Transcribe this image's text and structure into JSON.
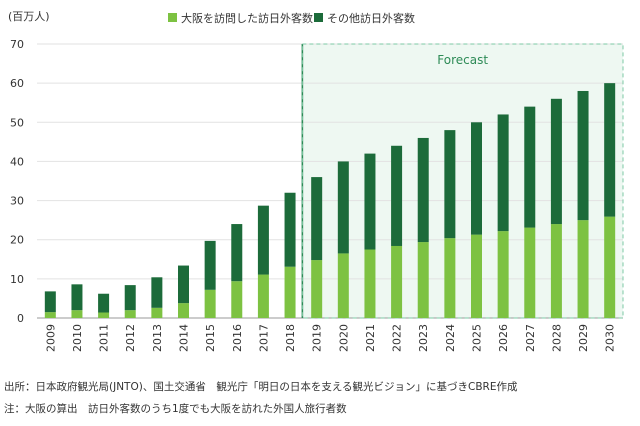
{
  "chart_data": {
    "type": "bar",
    "stacked": true,
    "unit_label": "(百万人)",
    "categories": [
      "2009",
      "2010",
      "2011",
      "2012",
      "2013",
      "2014",
      "2015",
      "2016",
      "2017",
      "2018",
      "2019",
      "2020",
      "2021",
      "2022",
      "2023",
      "2024",
      "2025",
      "2026",
      "2027",
      "2028",
      "2029",
      "2030"
    ],
    "series": [
      {
        "name": "大阪を訪問した訪日外客数",
        "color": "#7dc242",
        "values": [
          1.5,
          2.0,
          1.4,
          2.0,
          2.6,
          3.8,
          7.2,
          9.4,
          11.1,
          13.1,
          14.8,
          16.5,
          17.5,
          18.4,
          19.4,
          20.4,
          21.3,
          22.2,
          23.1,
          24.0,
          25.0,
          25.9
        ]
      },
      {
        "name": "その他訪日外客数",
        "color": "#1c6b3a",
        "values": [
          5.3,
          6.6,
          4.8,
          6.4,
          7.8,
          9.6,
          12.5,
          14.6,
          17.6,
          18.9,
          21.2,
          23.5,
          24.5,
          25.6,
          26.6,
          27.6,
          28.7,
          29.8,
          30.9,
          32.0,
          33.0,
          34.1
        ]
      }
    ],
    "ylim": [
      0,
      70
    ],
    "yticks": [
      0,
      10,
      20,
      30,
      40,
      50,
      60,
      70
    ],
    "grid": true,
    "legend": "top",
    "forecast": {
      "label": "Forecast",
      "start": "2019",
      "end": "2030"
    }
  },
  "notes": {
    "source": "出所：日本政府観光局(JNTO)、国土交通省　観光庁「明日の日本を支える観光ビジョン」に基づきCBRE作成",
    "note": "注：大阪の算出　訪日外客数のうち1度でも大阪を訪れた外国人旅行者数"
  }
}
